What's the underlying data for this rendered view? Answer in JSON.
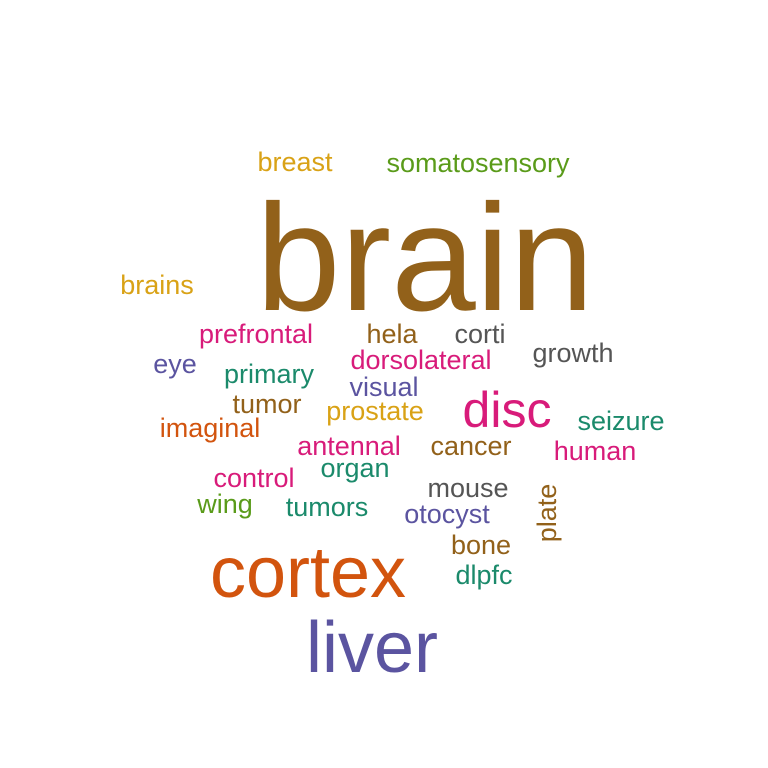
{
  "chart_data": {
    "type": "wordcloud",
    "words": [
      {
        "text": "brain",
        "color": "#92611a",
        "weight": 100
      },
      {
        "text": "cortex",
        "color": "#d2540e",
        "weight": 55
      },
      {
        "text": "liver",
        "color": "#5b54a0",
        "weight": 55
      },
      {
        "text": "disc",
        "color": "#d81b7a",
        "weight": 35
      },
      {
        "text": "breast",
        "color": "#d9a216",
        "weight": 20
      },
      {
        "text": "somatosensory",
        "color": "#5a9b1a",
        "weight": 20
      },
      {
        "text": "brains",
        "color": "#d9a216",
        "weight": 20
      },
      {
        "text": "prefrontal",
        "color": "#d81b7a",
        "weight": 20
      },
      {
        "text": "hela",
        "color": "#92611a",
        "weight": 20
      },
      {
        "text": "corti",
        "color": "#555555",
        "weight": 20
      },
      {
        "text": "growth",
        "color": "#555555",
        "weight": 20
      },
      {
        "text": "eye",
        "color": "#5b54a0",
        "weight": 20
      },
      {
        "text": "dorsolateral",
        "color": "#d81b7a",
        "weight": 20
      },
      {
        "text": "primary",
        "color": "#1b8a6b",
        "weight": 20
      },
      {
        "text": "visual",
        "color": "#5b54a0",
        "weight": 20
      },
      {
        "text": "tumor",
        "color": "#92611a",
        "weight": 20
      },
      {
        "text": "prostate",
        "color": "#d9a216",
        "weight": 20
      },
      {
        "text": "seizure",
        "color": "#1b8a6b",
        "weight": 20
      },
      {
        "text": "imaginal",
        "color": "#d2540e",
        "weight": 20
      },
      {
        "text": "antennal",
        "color": "#d81b7a",
        "weight": 20
      },
      {
        "text": "cancer",
        "color": "#92611a",
        "weight": 20
      },
      {
        "text": "human",
        "color": "#d81b7a",
        "weight": 20
      },
      {
        "text": "organ",
        "color": "#1b8a6b",
        "weight": 20
      },
      {
        "text": "control",
        "color": "#d81b7a",
        "weight": 20
      },
      {
        "text": "mouse",
        "color": "#555555",
        "weight": 20
      },
      {
        "text": "wing",
        "color": "#5a9b1a",
        "weight": 20
      },
      {
        "text": "tumors",
        "color": "#1b8a6b",
        "weight": 20
      },
      {
        "text": "otocyst",
        "color": "#5b54a0",
        "weight": 20
      },
      {
        "text": "plate",
        "color": "#92611a",
        "weight": 20
      },
      {
        "text": "bone",
        "color": "#92611a",
        "weight": 20
      },
      {
        "text": "dlpfc",
        "color": "#1b8a6b",
        "weight": 20
      }
    ]
  }
}
